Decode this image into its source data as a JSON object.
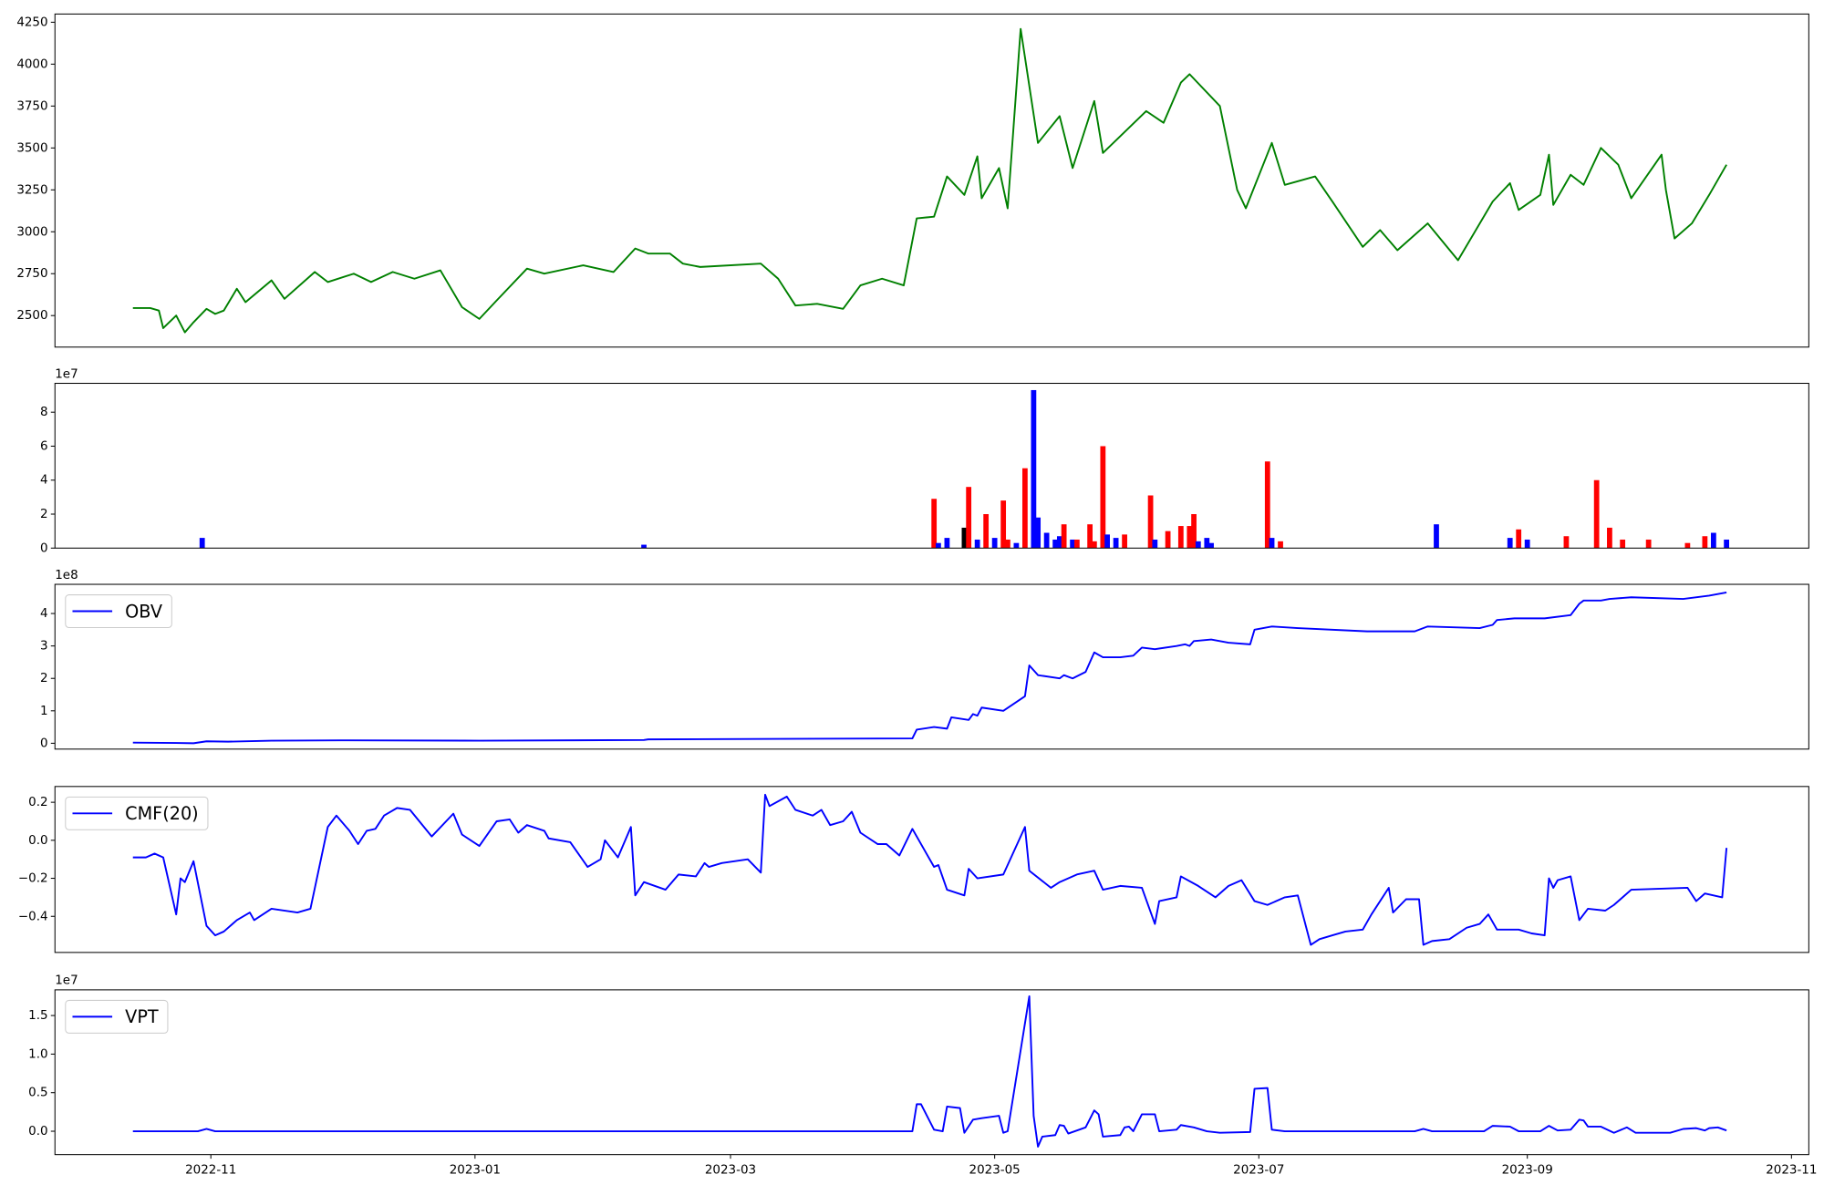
{
  "chart_data": [
    {
      "type": "line",
      "xlim": [
        "2022-09-26",
        "2023-11-05"
      ],
      "ylim": [
        2312,
        4299
      ],
      "yticks": [
        2500,
        2750,
        3000,
        3250,
        3500,
        3750,
        4000,
        4250
      ],
      "x": [
        "2022-10-14",
        "2022-10-18",
        "2022-10-20",
        "2022-10-21",
        "2022-10-24",
        "2022-10-26",
        "2022-10-28",
        "2022-10-31",
        "2022-11-02",
        "2022-11-04",
        "2022-11-07",
        "2022-11-09",
        "2022-11-15",
        "2022-11-18",
        "2022-11-25",
        "2022-11-28",
        "2022-12-04",
        "2022-12-08",
        "2022-12-13",
        "2022-12-18",
        "2022-12-24",
        "2022-12-29",
        "2023-01-02",
        "2023-01-06",
        "2023-01-13",
        "2023-01-17",
        "2023-01-26",
        "2023-02-02",
        "2023-02-07",
        "2023-02-10",
        "2023-02-15",
        "2023-02-18",
        "2023-02-22",
        "2023-03-08",
        "2023-03-12",
        "2023-03-16",
        "2023-03-21",
        "2023-03-27",
        "2023-03-31",
        "2023-04-05",
        "2023-04-10",
        "2023-04-13",
        "2023-04-17",
        "2023-04-20",
        "2023-04-24",
        "2023-04-27",
        "2023-04-28",
        "2023-05-02",
        "2023-05-04",
        "2023-05-07",
        "2023-05-11",
        "2023-05-16",
        "2023-05-19",
        "2023-05-24",
        "2023-05-26",
        "2023-05-30",
        "2023-06-05",
        "2023-06-09",
        "2023-06-13",
        "2023-06-15",
        "2023-06-22",
        "2023-06-26",
        "2023-06-28",
        "2023-07-04",
        "2023-07-07",
        "2023-07-14",
        "2023-07-18",
        "2023-07-25",
        "2023-07-29",
        "2023-08-02",
        "2023-08-09",
        "2023-08-16",
        "2023-08-24",
        "2023-08-28",
        "2023-08-30",
        "2023-09-04",
        "2023-09-06",
        "2023-09-07",
        "2023-09-11",
        "2023-09-14",
        "2023-09-18",
        "2023-09-22",
        "2023-09-25",
        "2023-10-02",
        "2023-10-03",
        "2023-10-05",
        "2023-10-09",
        "2023-10-13",
        "2023-10-17"
      ],
      "series": [
        {
          "color": "#008000",
          "values": [
            2545,
            2545,
            2530,
            2425,
            2500,
            2400,
            2460,
            2540,
            2510,
            2530,
            2660,
            2580,
            2710,
            2600,
            2760,
            2700,
            2750,
            2700,
            2760,
            2720,
            2770,
            2550,
            2480,
            2590,
            2780,
            2750,
            2800,
            2760,
            2900,
            2870,
            2870,
            2810,
            2790,
            2810,
            2720,
            2560,
            2570,
            2540,
            2680,
            2720,
            2680,
            3080,
            3090,
            3330,
            3220,
            3450,
            3200,
            3380,
            3140,
            4210,
            3530,
            3690,
            3380,
            3780,
            3470,
            3570,
            3720,
            3650,
            3890,
            3940,
            3750,
            3250,
            3140,
            3530,
            3280,
            3330,
            3180,
            2910,
            3010,
            2890,
            3050,
            2830,
            3180,
            3290,
            3130,
            3220,
            3460,
            3160,
            3340,
            3280,
            3500,
            3400,
            3200,
            3460,
            3250,
            2960,
            3050,
            3220,
            3400
          ]
        }
      ]
    },
    {
      "type": "bar",
      "xlim": [
        "2022-09-26",
        "2023-11-05"
      ],
      "ylim": [
        0,
        9.7
      ],
      "yticks": [
        0,
        2,
        4,
        6,
        8
      ],
      "y_offset_label": "1e7",
      "x": [
        "2022-10-30",
        "2023-02-09",
        "2023-04-17",
        "2023-04-18",
        "2023-04-20",
        "2023-04-24",
        "2023-04-25",
        "2023-04-27",
        "2023-04-29",
        "2023-05-01",
        "2023-05-03",
        "2023-05-04",
        "2023-05-06",
        "2023-05-08",
        "2023-05-10",
        "2023-05-11",
        "2023-05-13",
        "2023-05-15",
        "2023-05-16",
        "2023-05-17",
        "2023-05-19",
        "2023-05-20",
        "2023-05-23",
        "2023-05-24",
        "2023-05-26",
        "2023-05-27",
        "2023-05-29",
        "2023-05-31",
        "2023-06-06",
        "2023-06-07",
        "2023-06-10",
        "2023-06-13",
        "2023-06-15",
        "2023-06-16",
        "2023-06-17",
        "2023-06-19",
        "2023-06-20",
        "2023-07-03",
        "2023-07-04",
        "2023-07-06",
        "2023-08-11",
        "2023-08-28",
        "2023-08-30",
        "2023-09-01",
        "2023-09-10",
        "2023-09-17",
        "2023-09-20",
        "2023-09-23",
        "2023-09-29",
        "2023-10-08",
        "2023-10-12",
        "2023-10-14",
        "2023-10-17"
      ],
      "values": [
        0.6,
        0.2,
        2.9,
        0.3,
        0.6,
        1.2,
        3.6,
        0.5,
        2.0,
        0.6,
        2.8,
        0.5,
        0.3,
        4.7,
        9.3,
        1.8,
        0.9,
        0.5,
        0.7,
        1.4,
        0.5,
        0.5,
        1.4,
        0.4,
        6.0,
        0.8,
        0.6,
        0.8,
        3.1,
        0.5,
        1.0,
        1.3,
        1.3,
        2.0,
        0.4,
        0.6,
        0.3,
        5.1,
        0.6,
        0.4,
        1.4,
        0.6,
        1.1,
        0.5,
        0.7,
        4.0,
        1.2,
        0.5,
        0.5,
        0.3,
        0.7,
        0.9,
        0.5
      ],
      "colors": [
        "blue",
        "blue",
        "red",
        "blue",
        "blue",
        "black",
        "red",
        "blue",
        "red",
        "blue",
        "red",
        "red",
        "blue",
        "red",
        "blue",
        "blue",
        "blue",
        "blue",
        "blue",
        "red",
        "blue",
        "red",
        "red",
        "red",
        "red",
        "blue",
        "blue",
        "red",
        "red",
        "blue",
        "red",
        "red",
        "red",
        "red",
        "blue",
        "blue",
        "blue",
        "red",
        "blue",
        "red",
        "blue",
        "blue",
        "red",
        "blue",
        "red",
        "red",
        "red",
        "red",
        "red",
        "red",
        "red",
        "blue",
        "blue"
      ]
    },
    {
      "type": "line",
      "xlim": [
        "2022-09-26",
        "2023-11-05"
      ],
      "ylim": [
        -0.18,
        4.9
      ],
      "yticks": [
        0,
        1,
        2,
        3,
        4
      ],
      "y_offset_label": "1e8",
      "legend": "upper left",
      "x": [
        "2022-10-14",
        "2022-10-24",
        "2022-10-28",
        "2022-10-31",
        "2022-11-05",
        "2022-11-15",
        "2022-12-01",
        "2023-01-02",
        "2023-02-09",
        "2023-02-10",
        "2023-04-12",
        "2023-04-13",
        "2023-04-17",
        "2023-04-20",
        "2023-04-21",
        "2023-04-25",
        "2023-04-26",
        "2023-04-27",
        "2023-04-28",
        "2023-05-03",
        "2023-05-08",
        "2023-05-09",
        "2023-05-11",
        "2023-05-16",
        "2023-05-17",
        "2023-05-19",
        "2023-05-22",
        "2023-05-24",
        "2023-05-26",
        "2023-05-30",
        "2023-06-02",
        "2023-06-04",
        "2023-06-07",
        "2023-06-12",
        "2023-06-14",
        "2023-06-15",
        "2023-06-16",
        "2023-06-20",
        "2023-06-24",
        "2023-06-29",
        "2023-06-30",
        "2023-07-04",
        "2023-07-10",
        "2023-07-26",
        "2023-08-06",
        "2023-08-09",
        "2023-08-21",
        "2023-08-24",
        "2023-08-25",
        "2023-08-29",
        "2023-09-05",
        "2023-09-11",
        "2023-09-13",
        "2023-09-14",
        "2023-09-18",
        "2023-09-20",
        "2023-09-25",
        "2023-10-07",
        "2023-10-13",
        "2023-10-17"
      ],
      "series": [
        {
          "name": "OBV",
          "color": "#0000ff",
          "values": [
            0.02,
            0.01,
            0.0,
            0.06,
            0.05,
            0.08,
            0.09,
            0.08,
            0.1,
            0.12,
            0.15,
            0.42,
            0.5,
            0.45,
            0.8,
            0.72,
            0.9,
            0.85,
            1.1,
            1.0,
            1.45,
            2.4,
            2.1,
            2.0,
            2.1,
            2.0,
            2.2,
            2.8,
            2.65,
            2.65,
            2.7,
            2.95,
            2.9,
            3.0,
            3.05,
            3.0,
            3.15,
            3.2,
            3.1,
            3.05,
            3.5,
            3.6,
            3.55,
            3.45,
            3.45,
            3.6,
            3.55,
            3.65,
            3.8,
            3.85,
            3.85,
            3.95,
            4.3,
            4.4,
            4.4,
            4.45,
            4.5,
            4.45,
            4.55,
            4.65
          ]
        }
      ]
    },
    {
      "type": "line",
      "xlim": [
        "2022-09-26",
        "2023-11-05"
      ],
      "ylim": [
        -0.59,
        0.283
      ],
      "yticks": [
        {
          "value": -0.4,
          "label": "−0.4"
        },
        {
          "value": -0.2,
          "label": "−0.2"
        },
        {
          "value": 0,
          "label": "0.0"
        },
        0.2
      ],
      "legend": "upper left",
      "x": [
        "2022-10-14",
        "2022-10-17",
        "2022-10-19",
        "2022-10-21",
        "2022-10-24",
        "2022-10-25",
        "2022-10-26",
        "2022-10-28",
        "2022-10-31",
        "2022-11-02",
        "2022-11-04",
        "2022-11-07",
        "2022-11-10",
        "2022-11-11",
        "2022-11-15",
        "2022-11-21",
        "2022-11-24",
        "2022-11-28",
        "2022-11-30",
        "2022-12-03",
        "2022-12-05",
        "2022-12-07",
        "2022-12-09",
        "2022-12-11",
        "2022-12-14",
        "2022-12-17",
        "2022-12-22",
        "2022-12-27",
        "2022-12-29",
        "2023-01-02",
        "2023-01-06",
        "2023-01-09",
        "2023-01-11",
        "2023-01-13",
        "2023-01-17",
        "2023-01-18",
        "2023-01-23",
        "2023-01-27",
        "2023-01-30",
        "2023-01-31",
        "2023-02-03",
        "2023-02-06",
        "2023-02-07",
        "2023-02-09",
        "2023-02-14",
        "2023-02-17",
        "2023-02-21",
        "2023-02-23",
        "2023-02-24",
        "2023-02-27",
        "2023-03-05",
        "2023-03-08",
        "2023-03-09",
        "2023-03-10",
        "2023-03-14",
        "2023-03-16",
        "2023-03-20",
        "2023-03-22",
        "2023-03-24",
        "2023-03-27",
        "2023-03-29",
        "2023-03-31",
        "2023-04-04",
        "2023-04-06",
        "2023-04-09",
        "2023-04-12",
        "2023-04-17",
        "2023-04-18",
        "2023-04-20",
        "2023-04-24",
        "2023-04-25",
        "2023-04-27",
        "2023-05-03",
        "2023-05-08",
        "2023-05-09",
        "2023-05-14",
        "2023-05-16",
        "2023-05-20",
        "2023-05-24",
        "2023-05-26",
        "2023-05-30",
        "2023-06-04",
        "2023-06-07",
        "2023-06-08",
        "2023-06-12",
        "2023-06-13",
        "2023-06-17",
        "2023-06-21",
        "2023-06-24",
        "2023-06-27",
        "2023-06-30",
        "2023-07-03",
        "2023-07-07",
        "2023-07-10",
        "2023-07-13",
        "2023-07-15",
        "2023-07-18",
        "2023-07-21",
        "2023-07-25",
        "2023-07-27",
        "2023-07-31",
        "2023-08-01",
        "2023-08-04",
        "2023-08-07",
        "2023-08-08",
        "2023-08-10",
        "2023-08-14",
        "2023-08-18",
        "2023-08-21",
        "2023-08-23",
        "2023-08-25",
        "2023-08-30",
        "2023-09-02",
        "2023-09-05",
        "2023-09-06",
        "2023-09-07",
        "2023-09-08",
        "2023-09-11",
        "2023-09-13",
        "2023-09-15",
        "2023-09-19",
        "2023-09-21",
        "2023-09-25",
        "2023-10-08",
        "2023-10-10",
        "2023-10-12",
        "2023-10-16",
        "2023-10-17"
      ],
      "series": [
        {
          "name": "CMF(20)",
          "color": "#0000ff",
          "values": [
            -0.09,
            -0.09,
            -0.07,
            -0.09,
            -0.39,
            -0.2,
            -0.22,
            -0.11,
            -0.45,
            -0.5,
            -0.48,
            -0.42,
            -0.38,
            -0.42,
            -0.36,
            -0.38,
            -0.36,
            0.07,
            0.13,
            0.05,
            -0.02,
            0.05,
            0.06,
            0.13,
            0.17,
            0.16,
            0.02,
            0.14,
            0.03,
            -0.03,
            0.1,
            0.11,
            0.04,
            0.08,
            0.05,
            0.01,
            -0.01,
            -0.14,
            -0.1,
            0.0,
            -0.09,
            0.07,
            -0.29,
            -0.22,
            -0.26,
            -0.18,
            -0.19,
            -0.12,
            -0.14,
            -0.12,
            -0.1,
            -0.17,
            0.24,
            0.18,
            0.23,
            0.16,
            0.13,
            0.16,
            0.08,
            0.1,
            0.15,
            0.04,
            -0.02,
            -0.02,
            -0.08,
            0.06,
            -0.14,
            -0.13,
            -0.26,
            -0.29,
            -0.15,
            -0.2,
            -0.18,
            0.07,
            -0.16,
            -0.25,
            -0.22,
            -0.18,
            -0.16,
            -0.26,
            -0.24,
            -0.25,
            -0.44,
            -0.32,
            -0.3,
            -0.19,
            -0.24,
            -0.3,
            -0.24,
            -0.21,
            -0.32,
            -0.34,
            -0.3,
            -0.29,
            -0.55,
            -0.52,
            -0.5,
            -0.48,
            -0.47,
            -0.39,
            -0.25,
            -0.38,
            -0.31,
            -0.31,
            -0.55,
            -0.53,
            -0.52,
            -0.46,
            -0.44,
            -0.39,
            -0.47,
            -0.47,
            -0.49,
            -0.5,
            -0.2,
            -0.25,
            -0.21,
            -0.19,
            -0.42,
            -0.36,
            -0.37,
            -0.34,
            -0.26,
            -0.25,
            -0.32,
            -0.28,
            -0.3,
            -0.04
          ]
        }
      ]
    },
    {
      "type": "line",
      "xlim": [
        "2022-09-26",
        "2023-11-05"
      ],
      "ylim": [
        -0.303,
        1.833
      ],
      "yticks": [
        {
          "value": 0,
          "label": "0.0"
        },
        0.5,
        {
          "value": 1,
          "label": "1.0"
        },
        1.5
      ],
      "y_offset_label": "1e7",
      "legend": "upper left",
      "xticks": [
        {
          "value": "2022-11-01",
          "label": "2022-11"
        },
        {
          "value": "2023-01-01",
          "label": "2023-01"
        },
        {
          "value": "2023-03-01",
          "label": "2023-03"
        },
        {
          "value": "2023-05-01",
          "label": "2023-05"
        },
        {
          "value": "2023-07-01",
          "label": "2023-07"
        },
        {
          "value": "2023-09-01",
          "label": "2023-09"
        },
        {
          "value": "2023-11-01",
          "label": "2023-11"
        }
      ],
      "x": [
        "2022-10-14",
        "2022-10-29",
        "2022-10-31",
        "2022-11-02",
        "2023-04-12",
        "2023-04-13",
        "2023-04-14",
        "2023-04-17",
        "2023-04-19",
        "2023-04-20",
        "2023-04-23",
        "2023-04-24",
        "2023-04-26",
        "2023-04-28",
        "2023-05-02",
        "2023-05-03",
        "2023-05-04",
        "2023-05-09",
        "2023-05-10",
        "2023-05-11",
        "2023-05-12",
        "2023-05-15",
        "2023-05-16",
        "2023-05-17",
        "2023-05-18",
        "2023-05-22",
        "2023-05-24",
        "2023-05-25",
        "2023-05-26",
        "2023-05-30",
        "2023-05-31",
        "2023-06-01",
        "2023-06-02",
        "2023-06-04",
        "2023-06-07",
        "2023-06-08",
        "2023-06-12",
        "2023-06-13",
        "2023-06-16",
        "2023-06-19",
        "2023-06-22",
        "2023-06-29",
        "2023-06-30",
        "2023-07-03",
        "2023-07-04",
        "2023-07-07",
        "2023-08-06",
        "2023-08-08",
        "2023-08-10",
        "2023-08-22",
        "2023-08-24",
        "2023-08-28",
        "2023-08-30",
        "2023-09-04",
        "2023-09-06",
        "2023-09-08",
        "2023-09-11",
        "2023-09-13",
        "2023-09-14",
        "2023-09-15",
        "2023-09-18",
        "2023-09-21",
        "2023-09-24",
        "2023-09-26",
        "2023-10-04",
        "2023-10-07",
        "2023-10-10",
        "2023-10-12",
        "2023-10-13",
        "2023-10-15",
        "2023-10-17"
      ],
      "series": [
        {
          "name": "VPT",
          "color": "#0000ff",
          "values": [
            0.0,
            0.0,
            0.03,
            0.0,
            0.0,
            0.35,
            0.35,
            0.02,
            0.0,
            0.32,
            0.3,
            -0.02,
            0.15,
            0.17,
            0.2,
            -0.02,
            0.0,
            1.75,
            0.2,
            -0.2,
            -0.07,
            -0.05,
            0.08,
            0.07,
            -0.03,
            0.05,
            0.27,
            0.22,
            -0.07,
            -0.05,
            0.05,
            0.06,
            0.0,
            0.22,
            0.22,
            0.0,
            0.02,
            0.08,
            0.05,
            0.0,
            -0.02,
            -0.01,
            0.55,
            0.56,
            0.02,
            0.0,
            0.0,
            0.03,
            0.0,
            0.0,
            0.07,
            0.06,
            0.0,
            0.0,
            0.07,
            0.01,
            0.02,
            0.15,
            0.14,
            0.06,
            0.06,
            -0.02,
            0.05,
            -0.02,
            -0.02,
            0.03,
            0.04,
            0.01,
            0.04,
            0.05,
            0.01
          ]
        }
      ]
    }
  ]
}
